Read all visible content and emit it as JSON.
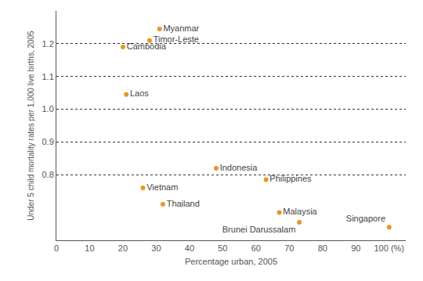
{
  "chart_data": {
    "type": "scatter",
    "x_label": "Percentage urban, 2005",
    "y_label": "Under 5 child mortality rates per 1,000 live births, 2005",
    "color": "#e8952c",
    "marker": "circle",
    "grid": true,
    "points": [
      {
        "label": "Myanmar",
        "x": 31,
        "y": 1.245
      },
      {
        "label": "Timor-Leste",
        "x": 28,
        "y": 1.21
      },
      {
        "label": "Cambodia",
        "x": 20,
        "y": 1.19
      },
      {
        "label": "Laos",
        "x": 21,
        "y": 1.045
      },
      {
        "label": "Indonesia",
        "x": 48,
        "y": 0.82
      },
      {
        "label": "Philippines",
        "x": 63,
        "y": 0.785
      },
      {
        "label": "Vietnam",
        "x": 26,
        "y": 0.76
      },
      {
        "label": "Thailand",
        "x": 32,
        "y": 0.71
      },
      {
        "label": "Malaysia",
        "x": 67,
        "y": 0.685
      },
      {
        "label": "Brunei Darussalam",
        "x": 73,
        "y": 0.655
      },
      {
        "label": "Singapore",
        "x": 100,
        "y": 0.64
      }
    ],
    "xlim": [
      0,
      105
    ],
    "xticks": [
      0,
      10,
      20,
      30,
      40,
      50,
      60,
      70,
      80,
      90,
      {
        "value": 100,
        "label": "100 (%)"
      }
    ],
    "ylim": [
      0.6,
      1.3
    ],
    "yticks": [
      0.8,
      0.9,
      {
        "value": 1.0,
        "label": "1.0"
      },
      1.1,
      1.2
    ]
  }
}
